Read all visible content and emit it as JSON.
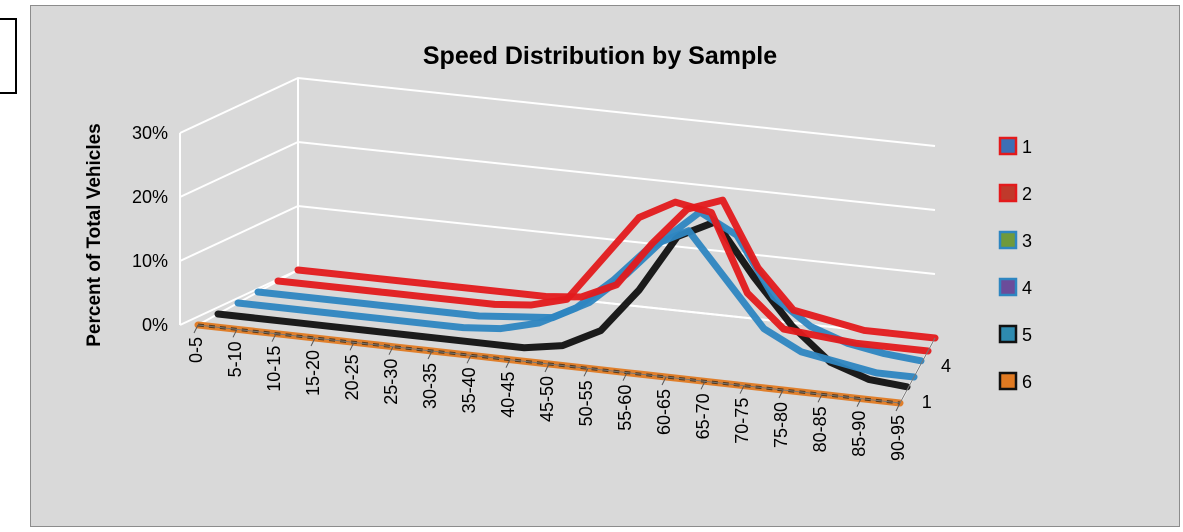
{
  "chart_data": {
    "type": "line",
    "variant": "3d-line",
    "title": "Speed Distribution by Sample",
    "ylabel": "Percent of Total Vehicles",
    "xlabel": "",
    "categories": [
      "0-5",
      "5-10",
      "10-15",
      "15-20",
      "20-25",
      "25-30",
      "30-35",
      "35-40",
      "40-45",
      "45-50",
      "50-55",
      "55-60",
      "60-65",
      "65-70",
      "70-75",
      "75-80",
      "80-85",
      "85-90",
      "90-95"
    ],
    "depth_ticks": [
      "4",
      "1"
    ],
    "yticks": [
      "0%",
      "10%",
      "20%",
      "30%"
    ],
    "ylim": [
      0,
      0.3
    ],
    "grid": true,
    "legend_position": "right",
    "series": [
      {
        "name": "1",
        "color": "#e31a1c",
        "values": [
          0,
          0,
          0,
          0,
          0,
          0,
          0,
          0,
          0.005,
          0.03,
          0.1,
          0.16,
          0.18,
          0.08,
          0.02,
          0.01,
          0,
          0,
          0
        ]
      },
      {
        "name": "2",
        "color": "#e31a1c",
        "values": [
          0,
          0,
          0,
          0,
          0,
          0,
          0,
          0.005,
          0.02,
          0.09,
          0.16,
          0.19,
          0.18,
          0.06,
          0.01,
          0.005,
          0,
          0,
          0
        ]
      },
      {
        "name": "3",
        "color": "#2e86c1",
        "values": [
          0,
          0,
          0,
          0,
          0,
          0,
          0,
          0.005,
          0.01,
          0.04,
          0.09,
          0.15,
          0.2,
          0.17,
          0.08,
          0.04,
          0.02,
          0.01,
          0.005
        ]
      },
      {
        "name": "4",
        "color": "#2e86c1",
        "values": [
          0,
          0,
          0,
          0,
          0,
          0,
          0,
          0.005,
          0.02,
          0.05,
          0.1,
          0.16,
          0.19,
          0.12,
          0.05,
          0.02,
          0.01,
          0,
          0
        ]
      },
      {
        "name": "5",
        "color": "#111111",
        "values": [
          0,
          0,
          0,
          0,
          0,
          0,
          0,
          0,
          0,
          0.01,
          0.04,
          0.11,
          0.2,
          0.23,
          0.15,
          0.08,
          0.03,
          0.01,
          0.005
        ]
      },
      {
        "name": "6",
        "color": "#e07a22",
        "values": [
          0,
          0,
          0,
          0,
          0,
          0,
          0,
          0,
          0,
          0,
          0,
          0,
          0,
          0,
          0,
          0,
          0,
          0,
          0
        ]
      }
    ],
    "legend_markers": [
      {
        "label": "1",
        "fill": "#3d6fb5",
        "border": "#e31a1c"
      },
      {
        "label": "2",
        "fill": "#c0392b",
        "border": "#e31a1c"
      },
      {
        "label": "3",
        "fill": "#6f9a3c",
        "border": "#2e86c1"
      },
      {
        "label": "4",
        "fill": "#6b4c9a",
        "border": "#2e86c1"
      },
      {
        "label": "5",
        "fill": "#2e8bb0",
        "border": "#111111"
      },
      {
        "label": "6",
        "fill": "#e07a22",
        "border": "#111111"
      }
    ]
  }
}
